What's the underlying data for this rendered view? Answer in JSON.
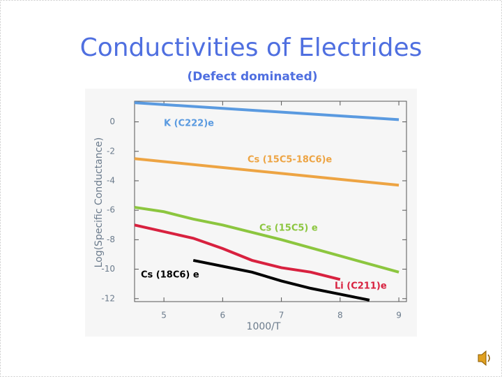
{
  "chart_data": {
    "type": "line",
    "title": "Conductivities of Electrides",
    "subtitle": "(Defect dominated)",
    "x_label": "1000/T",
    "y_label": "Log(Specific  Conductance)",
    "xlim": [
      4.5,
      9.13
    ],
    "ylim": [
      -12.2,
      1.4
    ],
    "xticks": [
      5,
      6,
      7,
      8,
      9
    ],
    "yticks": [
      0,
      -2,
      -4,
      -6,
      -8,
      -10,
      -12
    ],
    "series": [
      {
        "name": "K (C222)e",
        "color": "#5a9ae0",
        "x": [
          4.5,
          9
        ],
        "values": [
          1.3,
          0.15
        ]
      },
      {
        "name": "Cs (15C5-18C6)e",
        "color": "#eda443",
        "x": [
          4.5,
          9
        ],
        "values": [
          -2.5,
          -4.3
        ]
      },
      {
        "name": "Cs (15C5) e",
        "color": "#8cc63f",
        "x": [
          4.5,
          5,
          5.5,
          6,
          7,
          8,
          9
        ],
        "values": [
          -5.8,
          -6.1,
          -6.6,
          -7.0,
          -8.0,
          -9.1,
          -10.2
        ]
      },
      {
        "name": "Li (C211)e",
        "color": "#d8213f",
        "x": [
          4.5,
          5.5,
          6,
          6.5,
          7,
          7.5,
          8
        ],
        "values": [
          -7.0,
          -7.9,
          -8.6,
          -9.4,
          -9.9,
          -10.2,
          -10.7
        ]
      },
      {
        "name": "Cs (18C6) e",
        "color": "#000000",
        "x": [
          5.5,
          6,
          6.5,
          7,
          7.5,
          8,
          8.5
        ],
        "values": [
          -9.4,
          -9.8,
          -10.2,
          -10.8,
          -11.3,
          -11.7,
          -12.1
        ]
      }
    ]
  }
}
